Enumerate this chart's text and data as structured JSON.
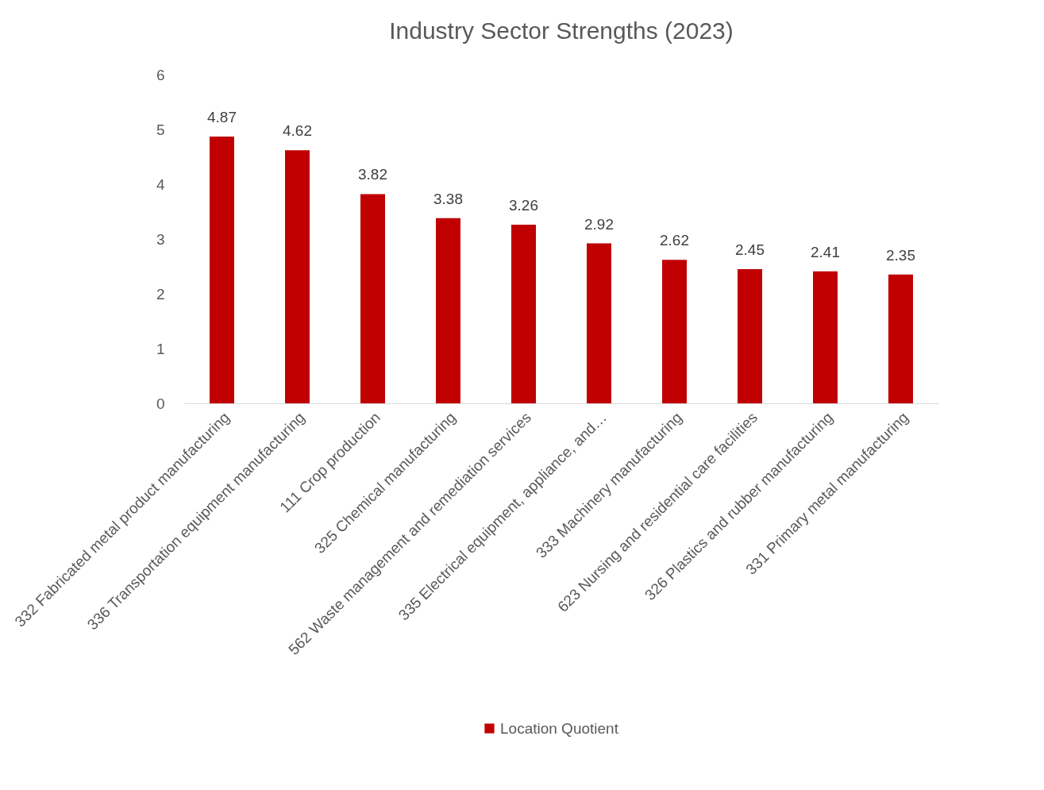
{
  "chart_data": {
    "type": "bar",
    "title": "Industry Sector Strengths (2023)",
    "categories": [
      "332 Fabricated metal product manufacturing",
      "336 Transportation equipment manufacturing",
      "111 Crop production",
      "325 Chemical manufacturing",
      "562 Waste management and remediation services",
      "335 Electrical equipment, appliance, and…",
      "333 Machinery manufacturing",
      "623 Nursing and residential care facilities",
      "326 Plastics and rubber manufacturing",
      "331 Primary metal manufacturing"
    ],
    "series": [
      {
        "name": "Location Quotient",
        "color": "#c00000",
        "values": [
          4.87,
          4.62,
          3.82,
          3.38,
          3.26,
          2.92,
          2.62,
          2.45,
          2.41,
          2.35
        ]
      }
    ],
    "ylim": [
      0,
      6
    ],
    "yticks": [
      0,
      1,
      2,
      3,
      4,
      5,
      6
    ],
    "data_labels": true,
    "legend": "bottom",
    "grid": false
  }
}
